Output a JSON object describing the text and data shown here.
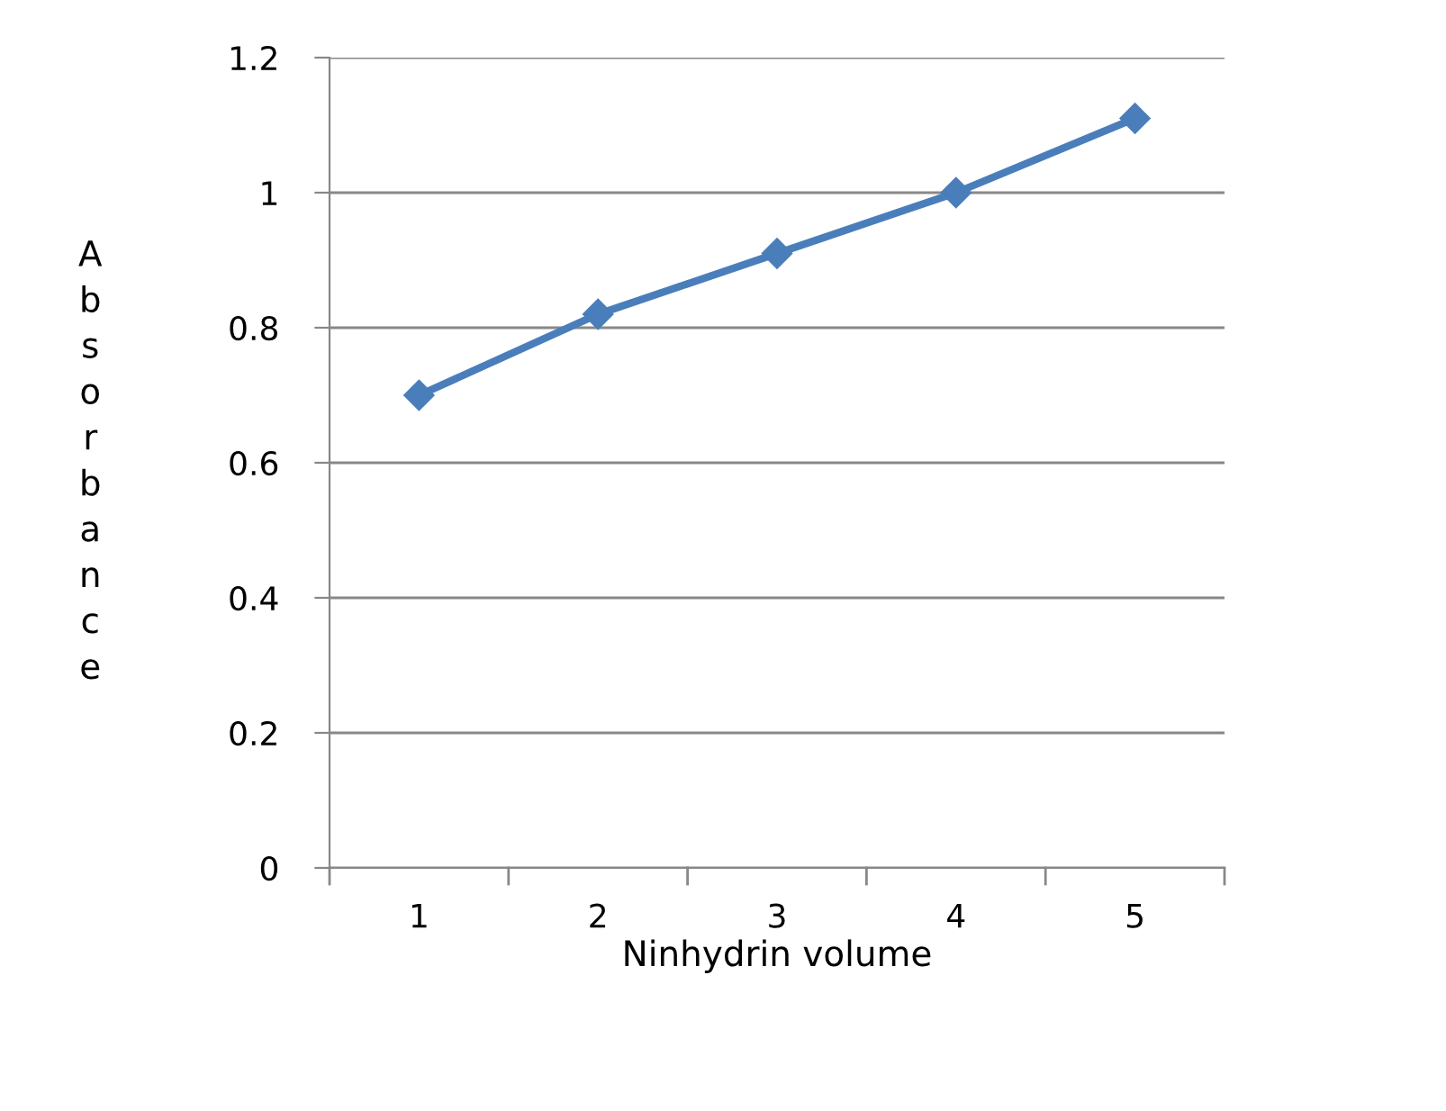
{
  "chart_data": {
    "type": "line",
    "xlabel": "Ninhydrin volume",
    "ylabel": "Absorbance",
    "categories": [
      "1",
      "2",
      "3",
      "4",
      "5"
    ],
    "series": [
      {
        "color": "#4a7ebb",
        "values": [
          0.7,
          0.82,
          0.91,
          1.0,
          1.11
        ]
      }
    ],
    "ylim": [
      0,
      1.2
    ],
    "yticks": [
      0,
      0.2,
      0.4,
      0.6,
      0.8,
      1,
      1.2
    ],
    "grid": "y",
    "marker": "diamond",
    "line_style": "solid"
  }
}
